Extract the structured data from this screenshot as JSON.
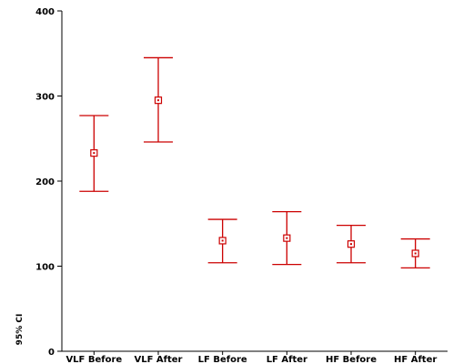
{
  "chart_data": {
    "type": "errorbar",
    "title": "",
    "xlabel": "",
    "ylabel": "95% CI",
    "ylim": [
      0,
      400
    ],
    "yticks": [
      0,
      100,
      200,
      300,
      400
    ],
    "grid": false,
    "series_color": "#cc0000",
    "categories": [
      "VLF Before",
      "VLF After",
      "LF Before",
      "LF After",
      "HF Before",
      "HF After"
    ],
    "mean": [
      233,
      295,
      130,
      133,
      126,
      115
    ],
    "lower": [
      188,
      246,
      104,
      102,
      104,
      98
    ],
    "upper": [
      277,
      345,
      155,
      164,
      148,
      132
    ]
  }
}
